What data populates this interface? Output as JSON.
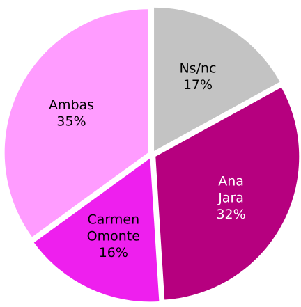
{
  "chart_data": {
    "type": "pie",
    "categories": [
      "Ns/nc",
      "Ana Jara",
      "Carmen Omonte",
      "Ambas"
    ],
    "values": [
      17,
      32,
      16,
      35
    ],
    "value_labels": [
      "17%",
      "32%",
      "16%",
      "35%"
    ],
    "colors": [
      "#c3c3c3",
      "#b6007f",
      "#ee1fee",
      "#ff9cff"
    ]
  }
}
